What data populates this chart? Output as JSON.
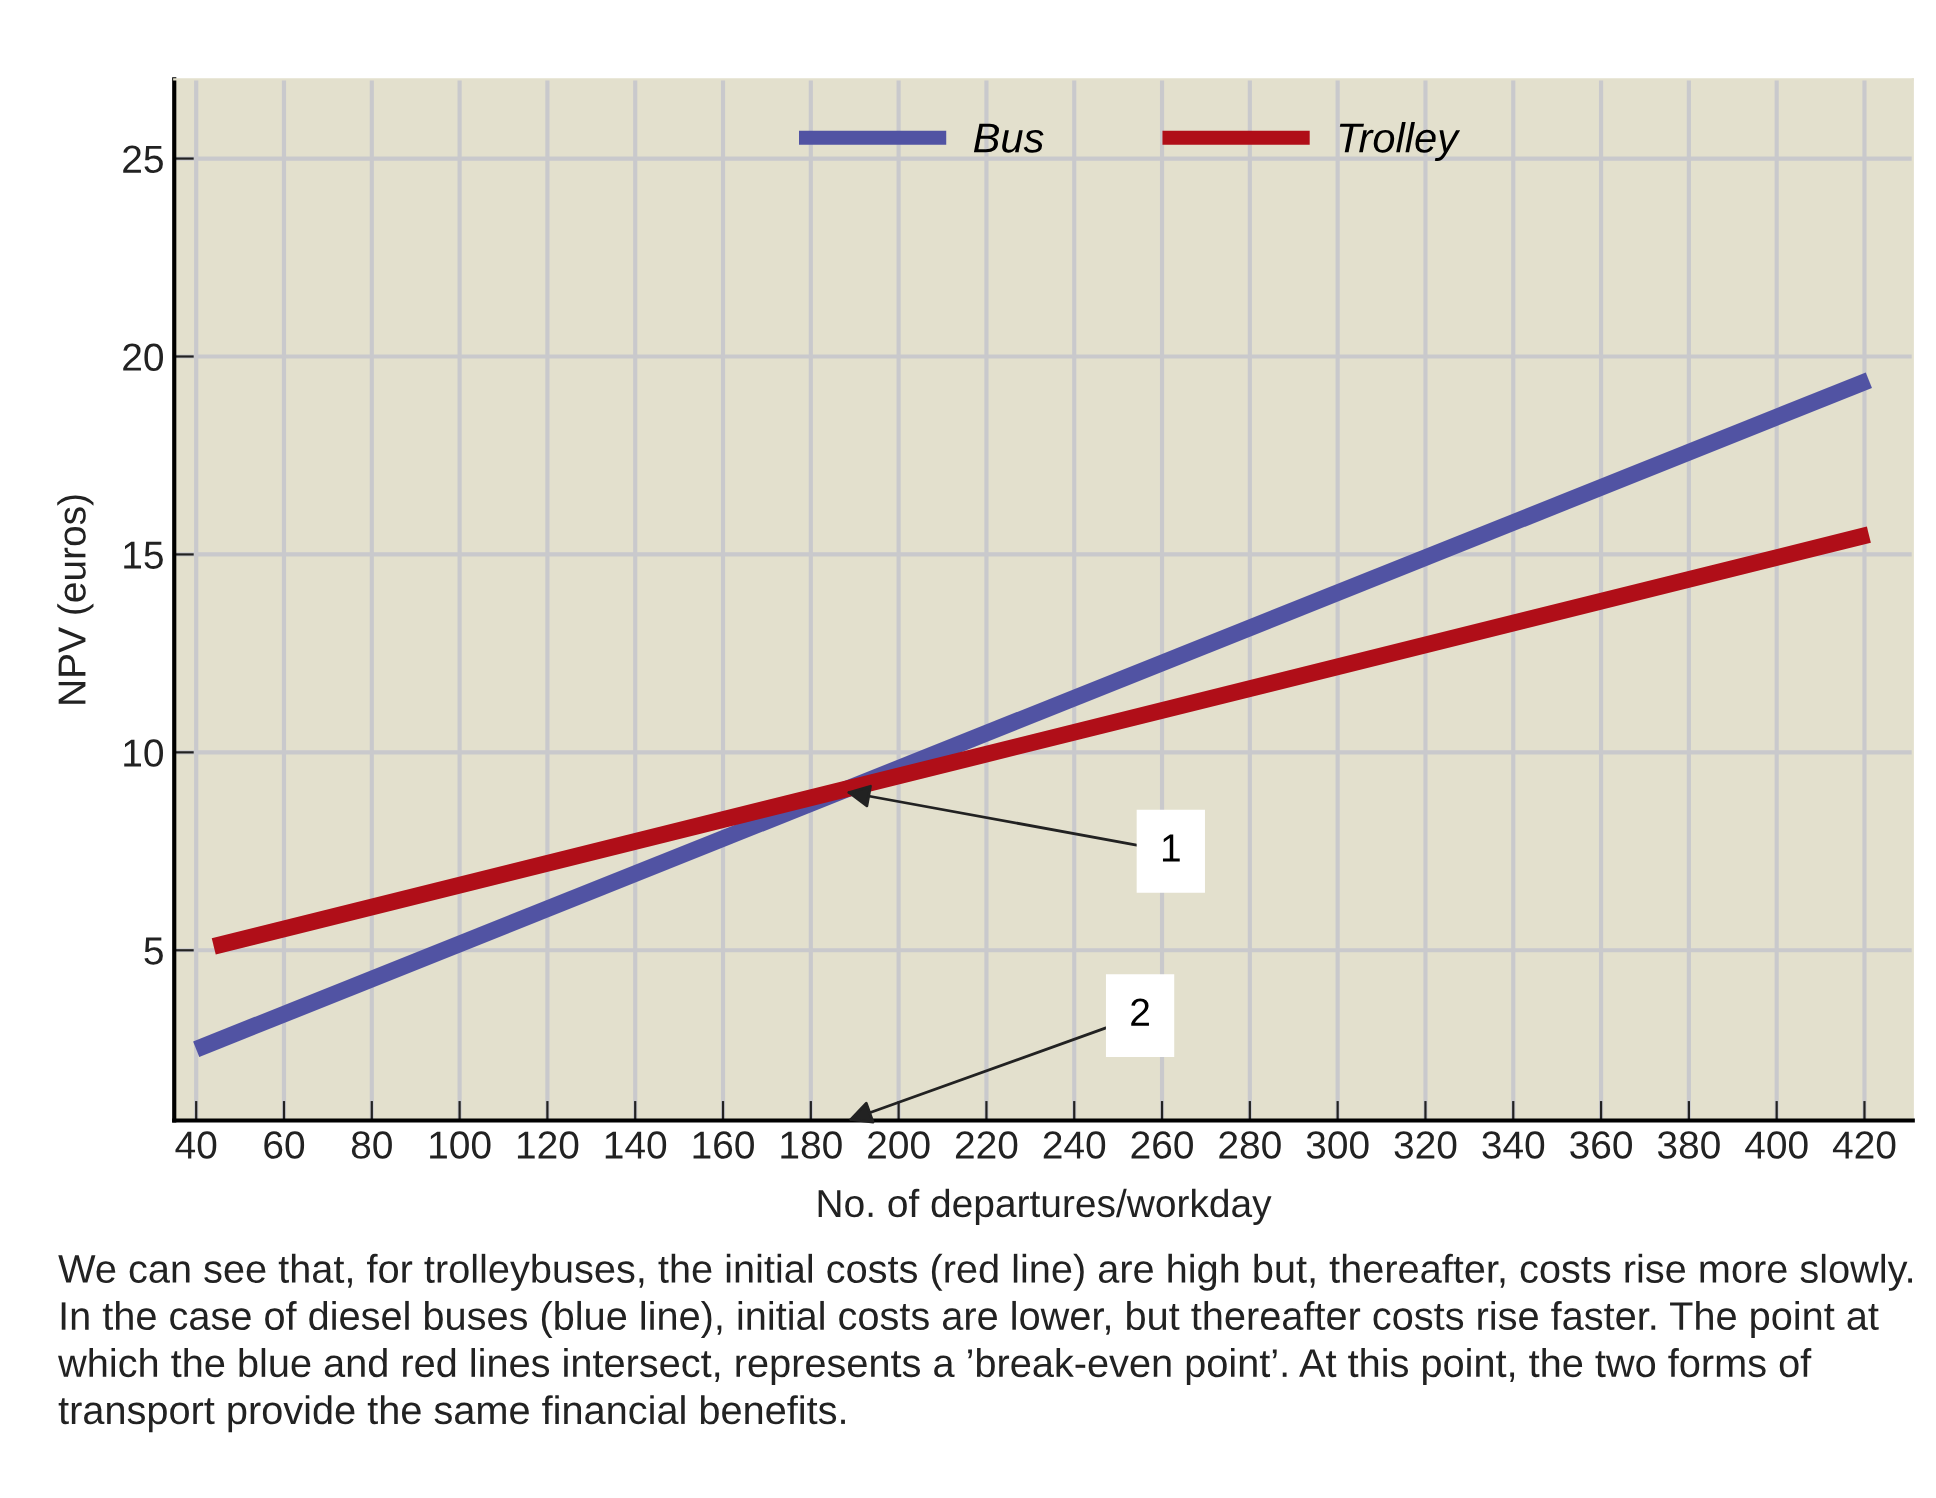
{
  "chart_data": {
    "type": "line",
    "xlabel": "No. of departures/workday",
    "ylabel": "NPV (euros)",
    "xlim": [
      35,
      431
    ],
    "ylim": [
      0.7,
      27
    ],
    "xticks": [
      40,
      60,
      80,
      100,
      120,
      140,
      160,
      180,
      200,
      220,
      240,
      260,
      280,
      300,
      320,
      340,
      360,
      380,
      400,
      420
    ],
    "yticks": [
      5,
      10,
      15,
      20,
      25
    ],
    "grid": true,
    "legend": "top right",
    "marker": "none",
    "line_style": "solid",
    "series": [
      {
        "name": "Bus",
        "color": "#5153a3",
        "x": [
          40,
          421
        ],
        "values": [
          2.5,
          19.4
        ]
      },
      {
        "name": "Trolley",
        "color": "#b00e18",
        "x": [
          44,
          421
        ],
        "values": [
          5.1,
          15.5
        ]
      }
    ],
    "annotations": [
      {
        "text": "1",
        "x": 188,
        "y": 9.0
      },
      "2",
      "We can see that, for trolleybuses, the initial costs (red line) are high but, thereafter, costs rise more slowly. In the case of diesel buses (blue line), initial costs are lower, but thereafter costs rise faster. The point at which the blue and red lines intersect, represents a ’break-even point’. At this point, the two forms of transport provide the same financial benefits."
    ]
  }
}
